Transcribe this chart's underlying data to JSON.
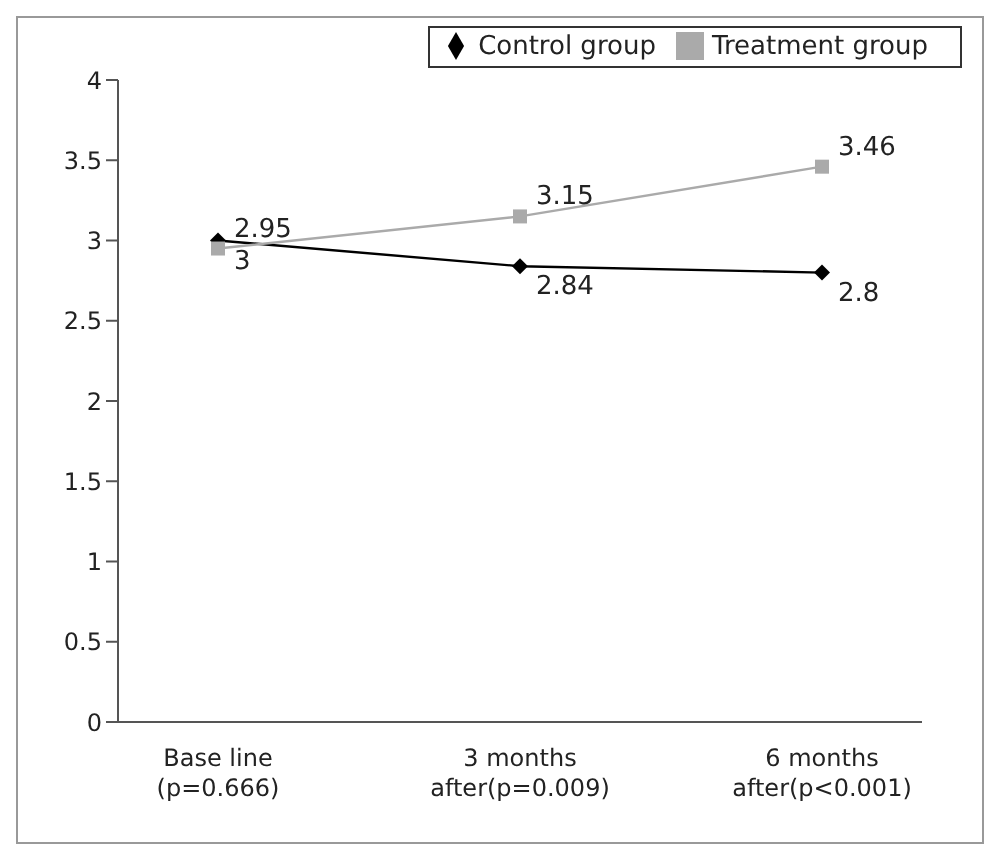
{
  "chart_data": {
    "type": "line",
    "categories": [
      "Base line (p=0.666)",
      "3 months after(p=0.009)",
      "6 months after(p<0.001)"
    ],
    "series": [
      {
        "name": "Control group",
        "color": "#000000",
        "marker": "diamond",
        "values": [
          3,
          2.84,
          2.8
        ]
      },
      {
        "name": "Treatment group",
        "color": "#aaaaaa",
        "marker": "square",
        "values": [
          2.95,
          3.15,
          3.46
        ]
      }
    ],
    "ylim": [
      0,
      4
    ],
    "yticks": [
      0,
      0.5,
      1,
      1.5,
      2,
      2.5,
      3,
      3.5,
      4
    ],
    "grid": false,
    "legend": "top",
    "data_labels": true
  }
}
